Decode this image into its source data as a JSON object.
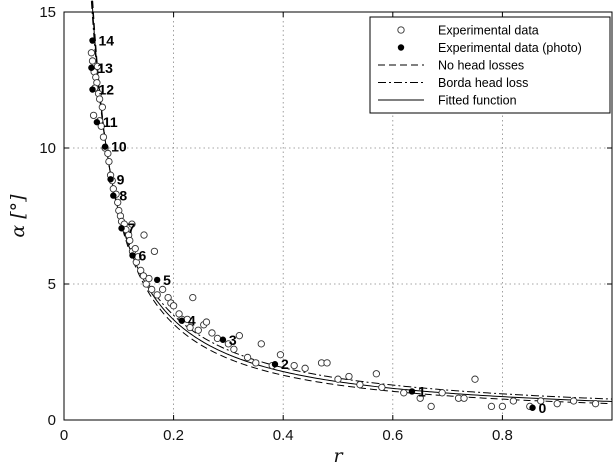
{
  "chart_data": {
    "type": "scatter",
    "title": "",
    "xlabel": "r",
    "ylabel": "α [°]",
    "xlim": [
      0,
      1
    ],
    "ylim": [
      0,
      15
    ],
    "xticks": [
      0,
      0.2,
      0.4,
      0.6,
      0.8
    ],
    "xtick_labels": [
      "0",
      "0.2",
      "0.4",
      "0.6",
      "0.8"
    ],
    "yticks": [
      0,
      5,
      10,
      15
    ],
    "ytick_labels": [
      "0",
      "5",
      "10",
      "15"
    ],
    "grid": true,
    "grid_style": "dotted",
    "legend_position": "top-right",
    "legend": [
      {
        "label": "Experimental data",
        "style": "open-circle"
      },
      {
        "label": "Experimental data (photo)",
        "style": "filled-circle"
      },
      {
        "label": "No head losses",
        "style": "dashed"
      },
      {
        "label": "Borda head loss",
        "style": "dashdot"
      },
      {
        "label": "Fitted function",
        "style": "solid"
      }
    ],
    "series": [
      {
        "name": "Experimental data",
        "marker": "open-circle",
        "points": [
          [
            0.05,
            13.5
          ],
          [
            0.052,
            13.2
          ],
          [
            0.055,
            12.8
          ],
          [
            0.058,
            12.6
          ],
          [
            0.06,
            12.4
          ],
          [
            0.063,
            12.0
          ],
          [
            0.056,
            12.2
          ],
          [
            0.065,
            11.8
          ],
          [
            0.061,
            13.0
          ],
          [
            0.054,
            11.2
          ],
          [
            0.065,
            11.0
          ],
          [
            0.068,
            10.8
          ],
          [
            0.072,
            10.4
          ],
          [
            0.075,
            10.0
          ],
          [
            0.07,
            11.5
          ],
          [
            0.08,
            9.8
          ],
          [
            0.082,
            9.5
          ],
          [
            0.085,
            9.0
          ],
          [
            0.088,
            8.8
          ],
          [
            0.09,
            8.5
          ],
          [
            0.095,
            8.3
          ],
          [
            0.098,
            8.0
          ],
          [
            0.1,
            7.7
          ],
          [
            0.103,
            7.5
          ],
          [
            0.105,
            7.3
          ],
          [
            0.11,
            7.2
          ],
          [
            0.113,
            7.0
          ],
          [
            0.118,
            6.8
          ],
          [
            0.12,
            6.6
          ],
          [
            0.124,
            7.2
          ],
          [
            0.125,
            6.2
          ],
          [
            0.13,
            6.3
          ],
          [
            0.132,
            5.8
          ],
          [
            0.135,
            6.0
          ],
          [
            0.14,
            5.5
          ],
          [
            0.145,
            5.3
          ],
          [
            0.15,
            5.0
          ],
          [
            0.146,
            6.8
          ],
          [
            0.155,
            5.2
          ],
          [
            0.16,
            4.8
          ],
          [
            0.165,
            6.2
          ],
          [
            0.17,
            4.6
          ],
          [
            0.18,
            4.8
          ],
          [
            0.19,
            4.5
          ],
          [
            0.195,
            4.3
          ],
          [
            0.2,
            4.2
          ],
          [
            0.21,
            3.9
          ],
          [
            0.215,
            3.7
          ],
          [
            0.225,
            3.7
          ],
          [
            0.23,
            3.4
          ],
          [
            0.235,
            4.5
          ],
          [
            0.245,
            3.3
          ],
          [
            0.255,
            3.5
          ],
          [
            0.26,
            3.6
          ],
          [
            0.27,
            3.2
          ],
          [
            0.28,
            3.0
          ],
          [
            0.3,
            2.8
          ],
          [
            0.31,
            2.6
          ],
          [
            0.32,
            3.1
          ],
          [
            0.335,
            2.3
          ],
          [
            0.35,
            2.1
          ],
          [
            0.36,
            2.8
          ],
          [
            0.38,
            2.0
          ],
          [
            0.395,
            2.4
          ],
          [
            0.42,
            2.0
          ],
          [
            0.44,
            1.9
          ],
          [
            0.47,
            2.1
          ],
          [
            0.48,
            2.1
          ],
          [
            0.5,
            1.5
          ],
          [
            0.52,
            1.6
          ],
          [
            0.54,
            1.3
          ],
          [
            0.57,
            1.7
          ],
          [
            0.58,
            1.2
          ],
          [
            0.62,
            1.0
          ],
          [
            0.65,
            0.8
          ],
          [
            0.67,
            0.5
          ],
          [
            0.69,
            1.0
          ],
          [
            0.72,
            0.8
          ],
          [
            0.73,
            0.8
          ],
          [
            0.75,
            1.5
          ],
          [
            0.78,
            0.5
          ],
          [
            0.8,
            0.5
          ],
          [
            0.82,
            0.7
          ],
          [
            0.85,
            0.5
          ],
          [
            0.87,
            0.7
          ],
          [
            0.9,
            0.6
          ],
          [
            0.93,
            0.7
          ],
          [
            0.97,
            0.6
          ]
        ]
      },
      {
        "name": "Experimental data (photo)",
        "marker": "filled-circle",
        "points": [
          {
            "label": "0",
            "x": 0.855,
            "y": 0.45
          },
          {
            "label": "1",
            "x": 0.635,
            "y": 1.05
          },
          {
            "label": "2",
            "x": 0.385,
            "y": 2.05
          },
          {
            "label": "3",
            "x": 0.29,
            "y": 2.95
          },
          {
            "label": "4",
            "x": 0.215,
            "y": 3.65
          },
          {
            "label": "5",
            "x": 0.17,
            "y": 5.15
          },
          {
            "label": "6",
            "x": 0.125,
            "y": 6.05
          },
          {
            "label": "7",
            "x": 0.105,
            "y": 7.05
          },
          {
            "label": "8",
            "x": 0.09,
            "y": 8.25
          },
          {
            "label": "9",
            "x": 0.085,
            "y": 8.85
          },
          {
            "label": "10",
            "x": 0.075,
            "y": 10.05
          },
          {
            "label": "11",
            "x": 0.06,
            "y": 10.95
          },
          {
            "label": "12",
            "x": 0.052,
            "y": 12.15
          },
          {
            "label": "13",
            "x": 0.05,
            "y": 12.95
          },
          {
            "label": "14",
            "x": 0.052,
            "y": 13.95
          }
        ]
      },
      {
        "name": "No head losses",
        "line": "dashed",
        "curve": {
          "k": 0.6,
          "p": 1.1
        }
      },
      {
        "name": "Borda head loss",
        "line": "dashdot",
        "curve": {
          "k": 0.77,
          "p": 1.0
        }
      },
      {
        "name": "Fitted function",
        "line": "solid",
        "curve": {
          "k": 0.68,
          "p": 1.05
        }
      }
    ]
  }
}
